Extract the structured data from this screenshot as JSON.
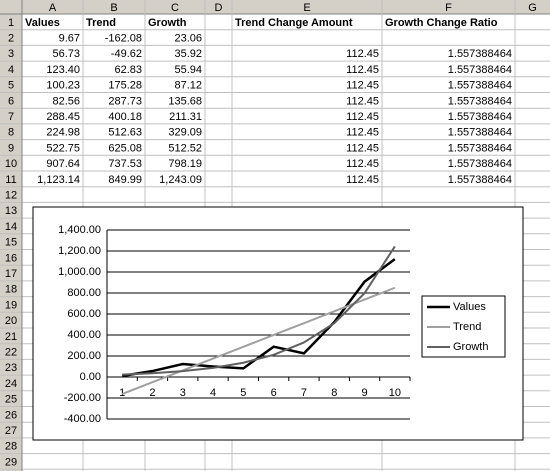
{
  "sheet": {
    "column_letters": [
      "A",
      "B",
      "C",
      "D",
      "E",
      "F",
      "G"
    ],
    "row_numbers": [
      1,
      2,
      3,
      4,
      5,
      6,
      7,
      8,
      9,
      10,
      11,
      12,
      13,
      14,
      15,
      16,
      17,
      18,
      19,
      20,
      21,
      22,
      23,
      24,
      25,
      26,
      27,
      28,
      29
    ],
    "rows": [
      {
        "A": "Values",
        "B": "Trend",
        "C": "Growth",
        "E": "Trend Change Amount",
        "F": "Growth Change Ratio"
      },
      {
        "A": "9.67",
        "B": "-162.08",
        "C": "23.06"
      },
      {
        "A": "56.73",
        "B": "-49.62",
        "C": "35.92",
        "E": "112.45",
        "F": "1.557388464"
      },
      {
        "A": "123.40",
        "B": "62.83",
        "C": "55.94",
        "E": "112.45",
        "F": "1.557388464"
      },
      {
        "A": "100.23",
        "B": "175.28",
        "C": "87.12",
        "E": "112.45",
        "F": "1.557388464"
      },
      {
        "A": "82.56",
        "B": "287.73",
        "C": "135.68",
        "E": "112.45",
        "F": "1.557388464"
      },
      {
        "A": "288.45",
        "B": "400.18",
        "C": "211.31",
        "E": "112.45",
        "F": "1.557388464"
      },
      {
        "A": "224.98",
        "B": "512.63",
        "C": "329.09",
        "E": "112.45",
        "F": "1.557388464"
      },
      {
        "A": "522.75",
        "B": "625.08",
        "C": "512.52",
        "E": "112.45",
        "F": "1.557388464"
      },
      {
        "A": "907.64",
        "B": "737.53",
        "C": "798.19",
        "E": "112.45",
        "F": "1.557388464"
      },
      {
        "A": "1,123.14",
        "B": "849.99",
        "C": "1,243.09",
        "E": "112.45",
        "F": "1.557388464"
      }
    ]
  },
  "chart_data": {
    "type": "line",
    "categories": [
      1,
      2,
      3,
      4,
      5,
      6,
      7,
      8,
      9,
      10
    ],
    "series": [
      {
        "name": "Values",
        "color": "#000000",
        "values": [
          9.67,
          56.73,
          123.4,
          100.23,
          82.56,
          288.45,
          224.98,
          522.75,
          907.64,
          1123.14
        ]
      },
      {
        "name": "Trend",
        "color": "#a0a0a0",
        "values": [
          -162.08,
          -49.62,
          62.83,
          175.28,
          287.73,
          400.18,
          512.63,
          625.08,
          737.53,
          849.99
        ]
      },
      {
        "name": "Growth",
        "color": "#606060",
        "values": [
          23.06,
          35.92,
          55.94,
          87.12,
          135.68,
          211.31,
          329.09,
          512.52,
          798.19,
          1243.09
        ]
      }
    ],
    "ylim": [
      -400,
      1400
    ],
    "yticks": [
      {
        "value": -400,
        "label": "-400.00"
      },
      {
        "value": -200,
        "label": "-200.00"
      },
      {
        "value": 0,
        "label": "0.00"
      },
      {
        "value": 200,
        "label": "200.00"
      },
      {
        "value": 400,
        "label": "400.00"
      },
      {
        "value": 600,
        "label": "600.00"
      },
      {
        "value": 800,
        "label": "800.00"
      },
      {
        "value": 1000,
        "label": "1,000.00"
      },
      {
        "value": 1200,
        "label": "1,200.00"
      },
      {
        "value": 1400,
        "label": "1,400.00"
      }
    ],
    "grid": true,
    "legend": "right"
  }
}
